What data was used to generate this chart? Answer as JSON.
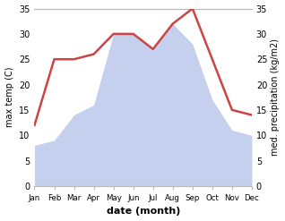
{
  "months": [
    "Jan",
    "Feb",
    "Mar",
    "Apr",
    "May",
    "Jun",
    "Jul",
    "Aug",
    "Sep",
    "Oct",
    "Nov",
    "Dec"
  ],
  "temperature": [
    12,
    25,
    25,
    26,
    30,
    30,
    27,
    32,
    35,
    25,
    15,
    14
  ],
  "precipitation": [
    8,
    9,
    14,
    16,
    30,
    30,
    27,
    32,
    28,
    17,
    11,
    10
  ],
  "temp_color": "#cc4444",
  "precip_color": "#c5d0ee",
  "ylabel_left": "max temp (C)",
  "ylabel_right": "med. precipitation (kg/m2)",
  "xlabel": "date (month)",
  "ylim": [
    0,
    35
  ],
  "yticks": [
    0,
    5,
    10,
    15,
    20,
    25,
    30,
    35
  ],
  "spine_color": "#bbbbbb",
  "bg_color": "#ffffff"
}
